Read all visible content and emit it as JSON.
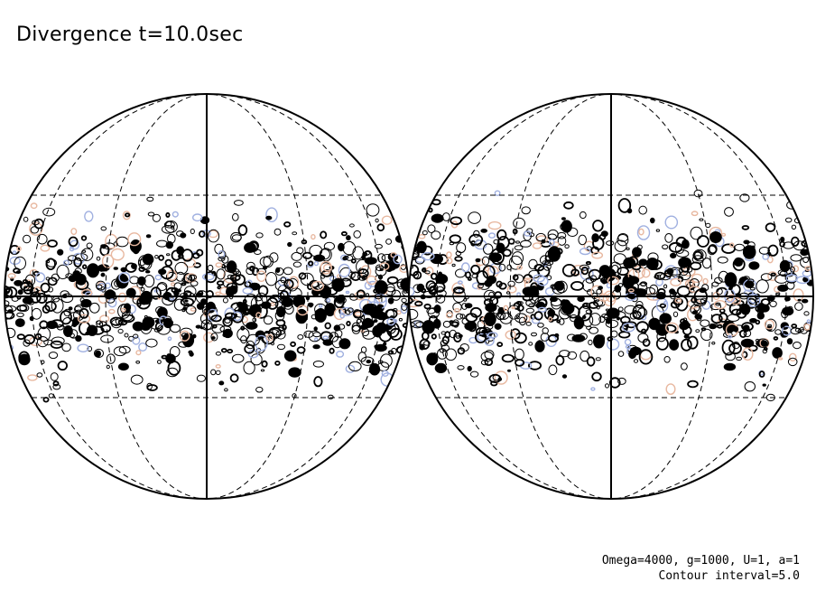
{
  "title": "Divergence t=10.0sec",
  "parameters": "Omega=4000, g=1000, U=1, a=1",
  "contour_interval": "Contour interval=5.0",
  "colors": {
    "outline": "#000000",
    "positive_contour": "#e8b8a0",
    "negative_contour": "#a0b0e0",
    "background": "#ffffff"
  }
}
